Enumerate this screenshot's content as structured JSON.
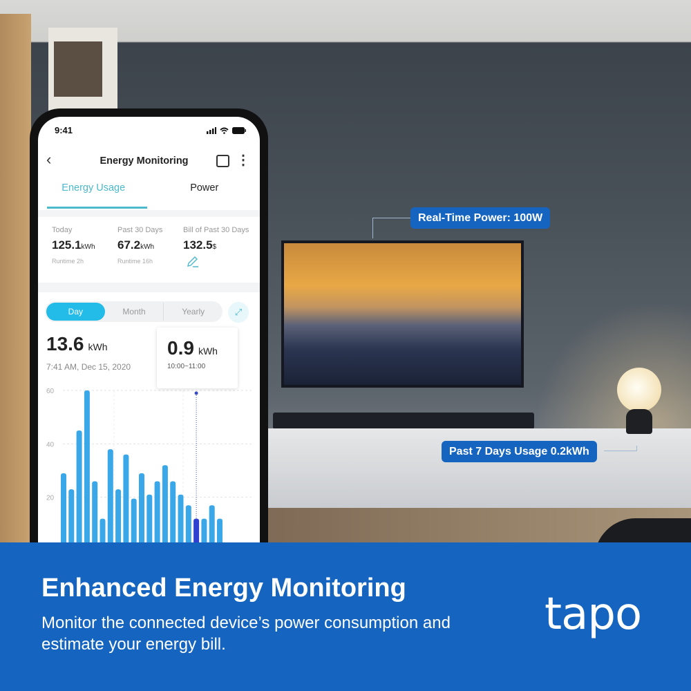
{
  "callouts": {
    "realtime": "Real-Time Power: 100W",
    "past7": "Past 7 Days Usage 0.2kWh"
  },
  "phone": {
    "status": {
      "time": "9:41"
    },
    "header": {
      "title": "Energy Monitoring",
      "back": "‹",
      "more": "⋮"
    },
    "tabs": [
      {
        "label": "Energy Usage",
        "active": true
      },
      {
        "label": "Power",
        "active": false
      }
    ],
    "stats": [
      {
        "label": "Today",
        "value": "125.1",
        "unit": "kWh",
        "runtime": "Runtime 2h"
      },
      {
        "label": "Past 30 Days",
        "value": "67.2",
        "unit": "kWh",
        "runtime": "Runtime 16h"
      },
      {
        "label": "Bill of Past 30 Days",
        "value": "132.5",
        "unit": "$"
      }
    ],
    "periods": [
      {
        "label": "Day",
        "active": true
      },
      {
        "label": "Month"
      },
      {
        "label": "Yearly"
      }
    ],
    "total": {
      "value": "13.6",
      "unit": "kWh",
      "timestamp": "7:41 AM, Dec 15, 2020"
    },
    "tooltip": {
      "value": "0.9",
      "unit": "kWh",
      "range": "10:00~11:00"
    }
  },
  "chart_data": {
    "type": "bar",
    "yticks": [
      "60",
      "40",
      "20"
    ],
    "ylim": [
      0,
      60
    ],
    "grid": true,
    "values": [
      29,
      23,
      45,
      60,
      26,
      12,
      38,
      23,
      36,
      19.5,
      29,
      21,
      26,
      32,
      26,
      21,
      17,
      12,
      12,
      17,
      12
    ],
    "highlight_index": 17,
    "colors": {
      "bar": "#3aa8e8",
      "highlight": "#2f3fd0"
    }
  },
  "banner": {
    "title": "Enhanced Energy Monitoring",
    "subtitle": "Monitor the connected device’s power consumption and estimate your energy bill.",
    "logo": "tapo",
    "color": "#1565c0"
  }
}
